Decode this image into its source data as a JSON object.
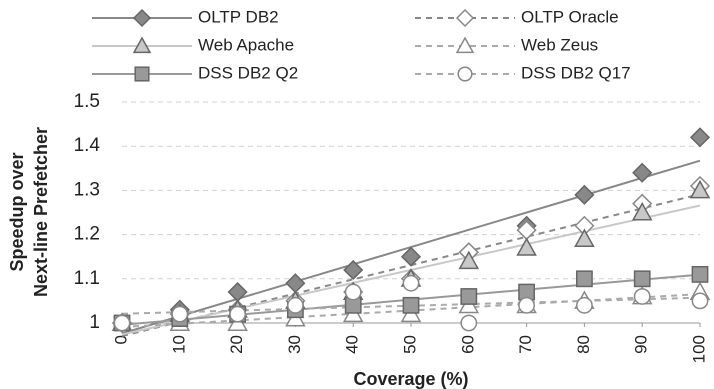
{
  "chart_data": {
    "type": "scatter",
    "ylabel": [
      "Speedup over",
      "Next-line Prefetcher"
    ],
    "xlabel": "Coverage (%)",
    "x": [
      0,
      10,
      20,
      30,
      40,
      50,
      60,
      70,
      80,
      90,
      100
    ],
    "xlim": [
      0,
      100
    ],
    "xticks": [
      0,
      10,
      20,
      30,
      40,
      50,
      60,
      70,
      80,
      90,
      100
    ],
    "ylim": [
      1,
      1.5
    ],
    "yticks": [
      1,
      1.1,
      1.2,
      1.3,
      1.4,
      1.5
    ],
    "grid": true,
    "trendline": "linear",
    "legend": "top",
    "series": [
      {
        "name": "OLTP DB2",
        "color": "#888888",
        "marker": "diamond",
        "filled": true,
        "line": "solid",
        "values": [
          1,
          1.03,
          1.07,
          1.09,
          1.12,
          1.15,
          1.16,
          1.22,
          1.29,
          1.34,
          1.42
        ]
      },
      {
        "name": "OLTP Oracle",
        "color": "#888888",
        "marker": "diamond",
        "filled": false,
        "line": "dashed",
        "values": [
          1,
          1.02,
          1.03,
          1.05,
          1.07,
          1.1,
          1.16,
          1.21,
          1.22,
          1.27,
          1.31
        ]
      },
      {
        "name": "Web Apache",
        "color": "#c8c8c8",
        "marker": "triangle",
        "filled": true,
        "line": "solid",
        "values": [
          1,
          1.02,
          1.03,
          1.05,
          1.07,
          1.1,
          1.14,
          1.17,
          1.19,
          1.25,
          1.3
        ]
      },
      {
        "name": "Web Zeus",
        "color": "#aaaaaa",
        "marker": "triangle",
        "filled": false,
        "line": "dashed",
        "values": [
          1,
          1,
          1,
          1.01,
          1.02,
          1.02,
          1.04,
          1.04,
          1.05,
          1.06,
          1.07
        ]
      },
      {
        "name": "DSS DB2 Q2",
        "color": "#999999",
        "marker": "square",
        "filled": true,
        "line": "solid",
        "values": [
          1,
          1.01,
          1.02,
          1.03,
          1.04,
          1.04,
          1.06,
          1.07,
          1.1,
          1.1,
          1.11
        ]
      },
      {
        "name": "DSS DB2 Q17",
        "color": "#aaaaaa",
        "marker": "circle",
        "filled": false,
        "line": "dashed",
        "values": [
          1,
          1.02,
          1.02,
          1.04,
          1.07,
          1.09,
          1,
          1.04,
          1.04,
          1.06,
          1.05
        ]
      }
    ]
  }
}
